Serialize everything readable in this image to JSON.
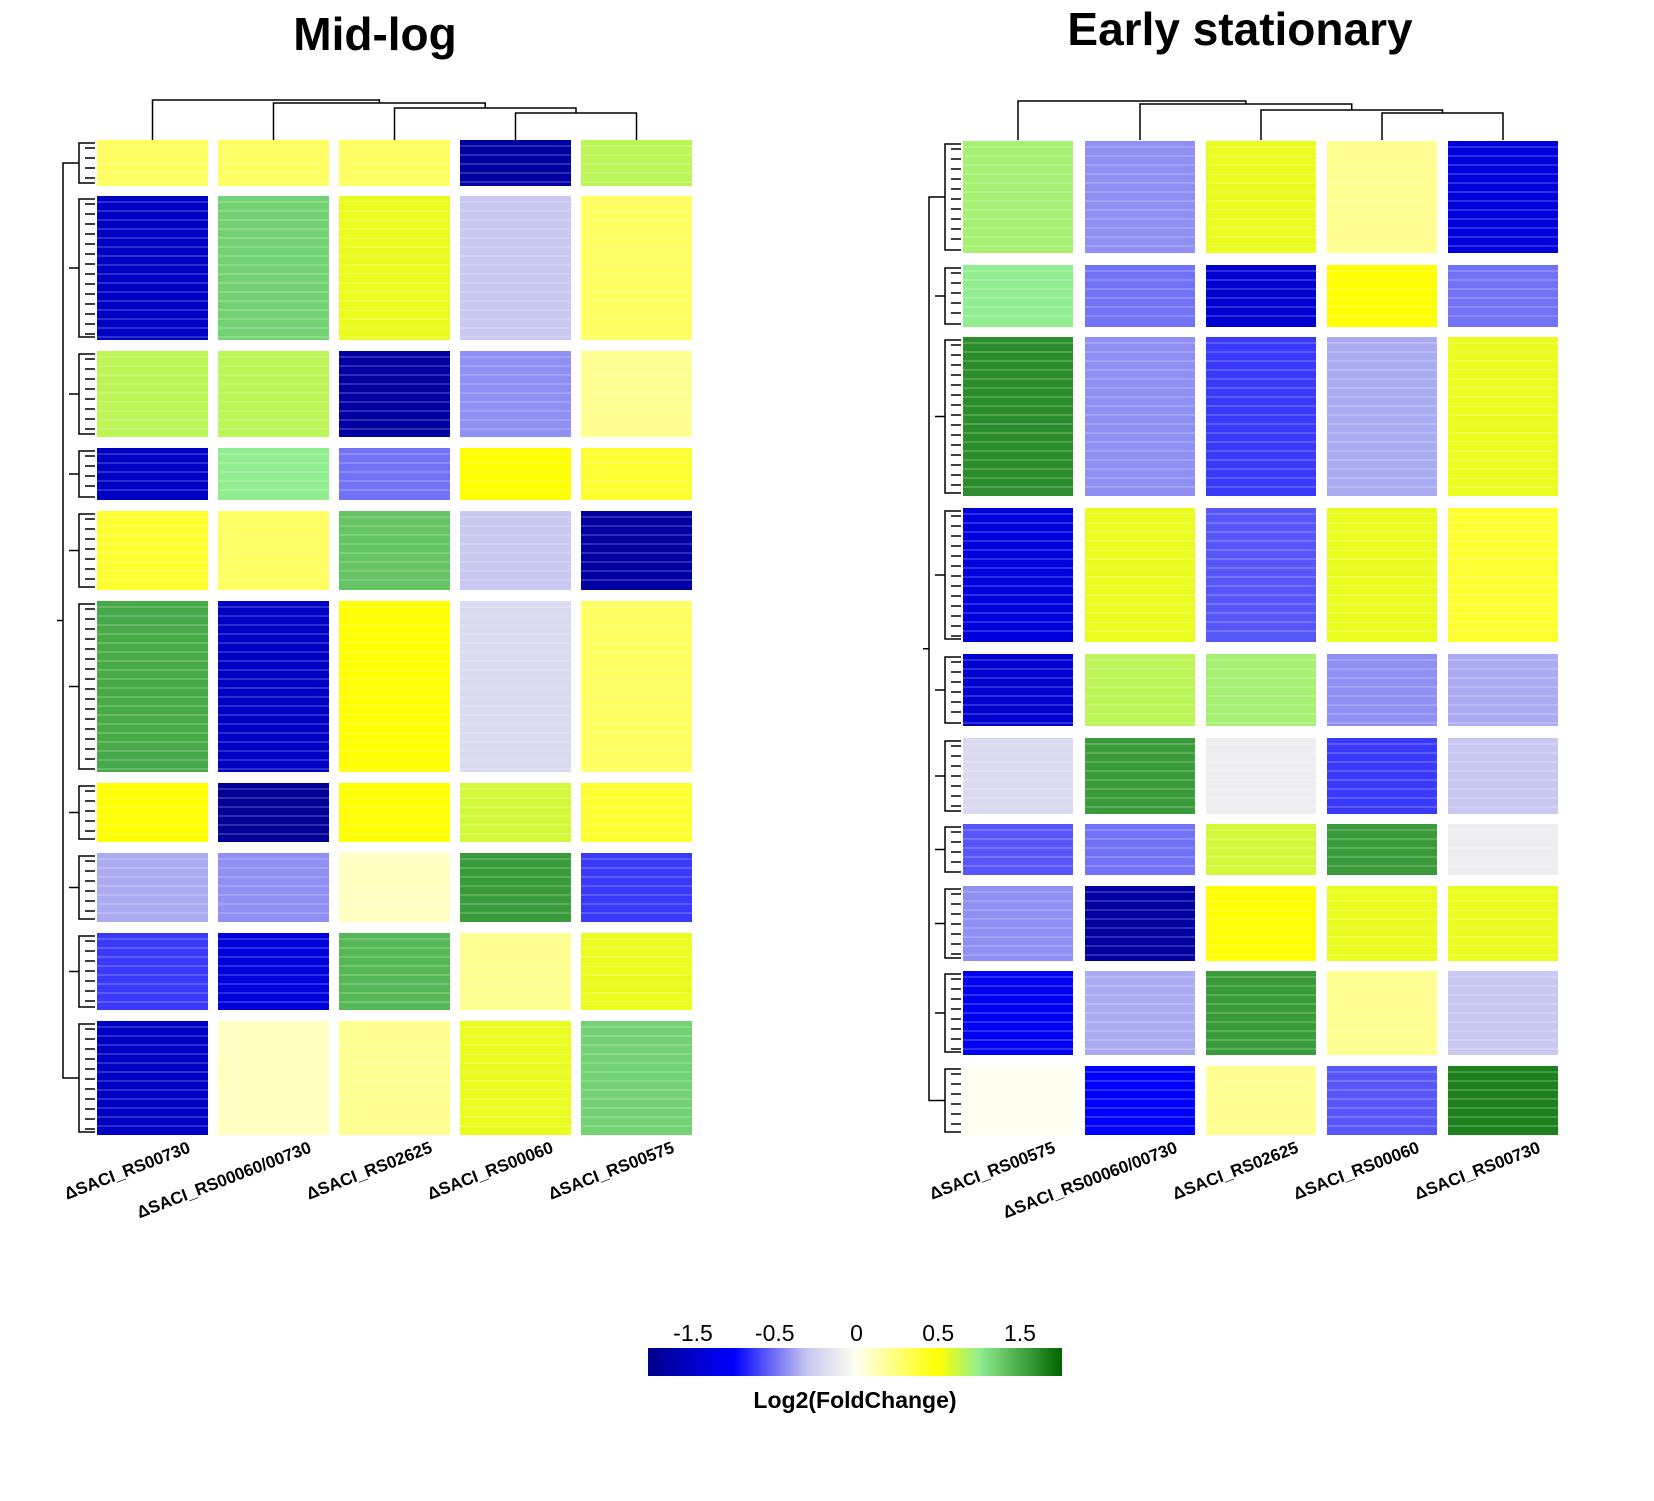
{
  "chart_data": [
    {
      "type": "heatmap",
      "title": "Mid-log",
      "columns": [
        "ΔSACI_RS00730",
        "ΔSACI_RS00060/00730",
        "ΔSACI_RS02625",
        "ΔSACI_RS00060",
        "ΔSACI_RS00575"
      ],
      "values": [
        [
          0.3,
          0.3,
          0.3,
          -1.8,
          0.8
        ],
        [
          -1.5,
          1.2,
          0.6,
          -0.3,
          0.3
        ],
        [
          0.8,
          0.8,
          -1.8,
          -0.5,
          0.2
        ],
        [
          -1.5,
          1.0,
          -0.6,
          0.5,
          0.4
        ],
        [
          0.4,
          0.3,
          1.3,
          -0.3,
          -1.8
        ],
        [
          1.5,
          -1.5,
          0.5,
          -0.2,
          0.3
        ],
        [
          0.5,
          -1.9,
          0.5,
          0.7,
          0.4
        ],
        [
          -0.4,
          -0.5,
          0.1,
          1.6,
          -0.8
        ],
        [
          -0.8,
          -1.3,
          1.4,
          0.2,
          0.6
        ],
        [
          -1.5,
          0.1,
          0.2,
          0.6,
          1.2
        ]
      ]
    },
    {
      "type": "heatmap",
      "title": "Early stationary",
      "columns": [
        "ΔSACI_RS00575",
        "ΔSACI_RS00060/00730",
        "ΔSACI_RS02625",
        "ΔSACI_RS00060",
        "ΔSACI_RS00730"
      ],
      "values": [
        [
          0.9,
          -0.5,
          0.6,
          0.2,
          -1.3
        ],
        [
          1.0,
          -0.6,
          -1.4,
          0.5,
          -0.6
        ],
        [
          1.7,
          -0.5,
          -0.8,
          -0.4,
          0.6
        ],
        [
          -1.3,
          0.6,
          -0.7,
          0.6,
          0.4
        ],
        [
          -1.4,
          0.8,
          0.9,
          -0.5,
          -0.4
        ],
        [
          -0.2,
          1.6,
          -0.1,
          -0.8,
          -0.3
        ],
        [
          -0.7,
          -0.6,
          0.7,
          1.6,
          -0.1
        ],
        [
          -0.5,
          -1.8,
          0.5,
          0.6,
          0.6
        ],
        [
          -1.1,
          -0.4,
          1.6,
          0.2,
          -0.3
        ],
        [
          0.0,
          -1.0,
          0.2,
          -0.7,
          1.8
        ]
      ]
    }
  ],
  "colorbar": {
    "label": "Log2(FoldChange)",
    "clim": [
      -2,
      2
    ],
    "ticks": [
      -1.5,
      -0.5,
      0,
      0.5,
      1.5
    ],
    "color_stops": [
      [
        -2,
        "#00008b"
      ],
      [
        -1,
        "#0000ff"
      ],
      [
        -0.3,
        "#c8c8f0"
      ],
      [
        0,
        "#fffff0"
      ],
      [
        0.5,
        "#ffff00"
      ],
      [
        1,
        "#90ee90"
      ],
      [
        2,
        "#006400"
      ]
    ]
  }
}
